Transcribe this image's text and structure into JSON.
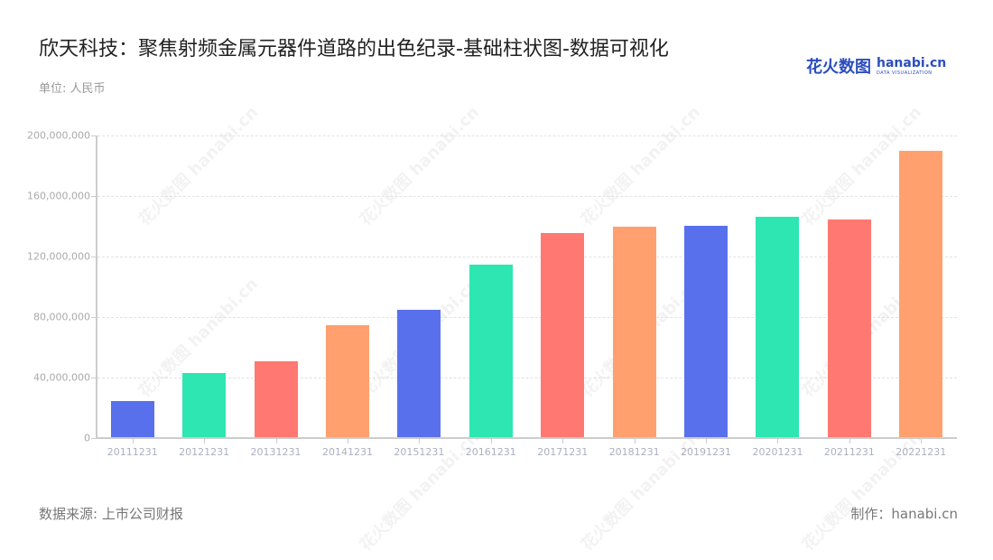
{
  "header": {
    "title": "欣天科技：聚焦射频金属元器件道路的出色纪录-基础柱状图-数据可视化",
    "unit": "单位: 人民币"
  },
  "logo": {
    "cn": "花火数图",
    "en": "hanabi.cn",
    "sub": "DATA VISUALIZATION"
  },
  "footer": {
    "source": "数据来源: 上市公司财报",
    "credit": "制作：hanabi.cn"
  },
  "watermark": "花火数图 hanabi.cn",
  "colors": {
    "blue": "#5970ED",
    "green": "#2DE6B2",
    "red": "#FF7872",
    "orange": "#FFA06E"
  },
  "chart_data": {
    "type": "bar",
    "title": "欣天科技：聚焦射频金属元器件道路的出色纪录-基础柱状图-数据可视化",
    "xlabel": "",
    "ylabel": "单位: 人民币",
    "ylim": [
      0,
      200000000
    ],
    "yticks": [
      "0",
      "40,000,000",
      "80,000,000",
      "120,000,000",
      "160,000,000",
      "200,000,000"
    ],
    "grid": true,
    "legend": "none",
    "categories": [
      "20111231",
      "20121231",
      "20131231",
      "20141231",
      "20151231",
      "20161231",
      "20171231",
      "20181231",
      "20191231",
      "20201231",
      "20211231",
      "20221231"
    ],
    "values": [
      24500000,
      43000000,
      50700000,
      74600000,
      84800000,
      114600000,
      135500000,
      139700000,
      140300000,
      146300000,
      144500000,
      189600000
    ],
    "bar_colors": [
      "#5970ED",
      "#2DE6B2",
      "#FF7872",
      "#FFA06E",
      "#5970ED",
      "#2DE6B2",
      "#FF7872",
      "#FFA06E",
      "#5970ED",
      "#2DE6B2",
      "#FF7872",
      "#FFA06E"
    ]
  }
}
